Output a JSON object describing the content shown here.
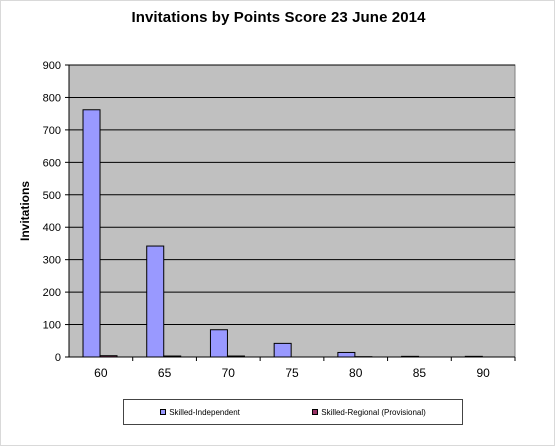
{
  "chart_data": {
    "type": "bar",
    "title": "Invitations by Points Score 23 June 2014",
    "xlabel": "",
    "ylabel": "Invitations",
    "categories": [
      "60",
      "65",
      "70",
      "75",
      "80",
      "85",
      "90"
    ],
    "ylim": [
      0,
      900
    ],
    "yticks": [
      "0",
      "100",
      "200",
      "300",
      "400",
      "500",
      "600",
      "700",
      "800",
      "900"
    ],
    "grid": true,
    "legend_position": "bottom",
    "series": [
      {
        "name": "Skilled-Independent",
        "color": "#9999ff",
        "values": [
          762,
          342,
          84,
          42,
          14,
          2,
          2
        ]
      },
      {
        "name": "Skilled-Regional (Provisional)",
        "color": "#993366",
        "values": [
          4,
          3,
          3,
          0,
          1,
          0,
          0
        ]
      }
    ],
    "plot_background": "#c0c0c0"
  }
}
